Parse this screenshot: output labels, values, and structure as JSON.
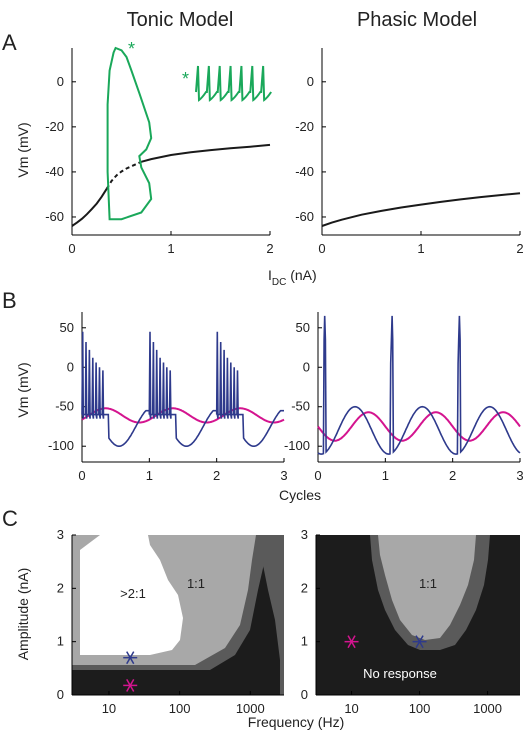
{
  "column_titles": [
    "Tonic Model",
    "Phasic Model"
  ],
  "panel_letters": [
    "A",
    "B",
    "C"
  ],
  "colors": {
    "black_curve": "#1a1a1a",
    "green": "#1aa85a",
    "navy": "#2e3a8c",
    "magenta": "#d4148f",
    "map_dark": "#1c1c1c",
    "map_mid": "#5a5a5a",
    "map_light": "#a8a8a8",
    "map_white": "#ffffff"
  },
  "chart_data": [
    {
      "id": "A-left",
      "type": "line",
      "title": "Tonic Model",
      "xlabel_main": "I",
      "xlabel_sub": "DC",
      "xlabel_unit": " (nA)",
      "ylabel": "Vm (mV)",
      "xlim": [
        0,
        2
      ],
      "ylim": [
        -68,
        15
      ],
      "xticks": [
        0,
        1,
        2
      ],
      "yticks": [
        0,
        -20,
        -40,
        -60
      ],
      "star_label": "*",
      "series": [
        {
          "style": "solid",
          "color": "black",
          "x": [
            0,
            0.05,
            0.1,
            0.15,
            0.2,
            0.25,
            0.3,
            0.35
          ],
          "y": [
            -64,
            -62.5,
            -60.8,
            -58.8,
            -56.5,
            -54,
            -51,
            -47.5
          ]
        },
        {
          "style": "dashed",
          "color": "black",
          "x": [
            0.35,
            0.4,
            0.45,
            0.5,
            0.55,
            0.6,
            0.65,
            0.7
          ],
          "y": [
            -47.5,
            -44,
            -41.5,
            -39.8,
            -38.5,
            -37.5,
            -36.5,
            -35.5
          ]
        },
        {
          "style": "solid",
          "color": "black",
          "x": [
            0.7,
            0.8,
            1.0,
            1.2,
            1.4,
            1.6,
            1.8,
            2.0
          ],
          "y": [
            -35.5,
            -34.3,
            -32.5,
            -31.3,
            -30.3,
            -29.5,
            -28.8,
            -28
          ]
        },
        {
          "style": "loop",
          "color": "green",
          "x": [
            0.42,
            0.44,
            0.5,
            0.55,
            0.6,
            0.68,
            0.78,
            0.8,
            0.75,
            0.68,
            0.7,
            0.78,
            0.8,
            0.7,
            0.5,
            0.38,
            0.36,
            0.36,
            0.38,
            0.42
          ],
          "y": [
            13,
            15,
            14,
            11,
            5,
            -5,
            -18,
            -25,
            -30,
            -33,
            -38,
            -45,
            -52,
            -58,
            -61,
            -61,
            -40,
            -10,
            5,
            13
          ]
        }
      ]
    },
    {
      "id": "A-inset",
      "type": "line",
      "star_label": "*",
      "series": [
        {
          "color": "green",
          "spikes": 7
        }
      ]
    },
    {
      "id": "A-right",
      "type": "line",
      "title": "Phasic Model",
      "xlim": [
        0,
        2
      ],
      "ylim": [
        -68,
        15
      ],
      "xticks": [
        0,
        1,
        2
      ],
      "yticks": [
        0,
        -20,
        -40,
        -60
      ],
      "series": [
        {
          "style": "solid",
          "color": "black",
          "x": [
            0,
            0.1,
            0.2,
            0.4,
            0.6,
            0.8,
            1.0,
            1.2,
            1.4,
            1.6,
            1.8,
            2.0
          ],
          "y": [
            -64,
            -62.5,
            -61.2,
            -59,
            -57.3,
            -55.8,
            -54.5,
            -53.3,
            -52.2,
            -51.2,
            -50.3,
            -49.5
          ]
        }
      ]
    },
    {
      "id": "B-left",
      "type": "line",
      "xlabel": "Cycles",
      "ylabel": "Vm (mV)",
      "xlim": [
        0,
        3
      ],
      "ylim": [
        -120,
        70
      ],
      "xticks": [
        0,
        1,
        2,
        3
      ],
      "yticks": [
        50,
        0,
        -50,
        -100
      ],
      "series": [
        {
          "color": "magenta",
          "kind": "sine",
          "center": -61,
          "amplitude": 9
        },
        {
          "color": "navy",
          "kind": "tonic-burst",
          "trough": -102,
          "peaks": [
            45,
            32,
            22,
            12,
            6,
            0,
            -4
          ]
        }
      ]
    },
    {
      "id": "B-right",
      "type": "line",
      "xlim": [
        0,
        3
      ],
      "ylim": [
        -120,
        70
      ],
      "xticks": [
        0,
        1,
        2,
        3
      ],
      "yticks": [
        50,
        0,
        -50,
        -100
      ],
      "series": [
        {
          "color": "magenta",
          "kind": "sine",
          "center": -75,
          "amplitude": 18
        },
        {
          "color": "navy",
          "kind": "phasic-spike",
          "trough": -110,
          "peak": 65
        }
      ]
    },
    {
      "id": "C-left",
      "type": "heatmap",
      "xlabel": "Frequency (Hz)",
      "ylabel": "Amplitude (nA)",
      "xscale": "log",
      "xlim": [
        3,
        3000
      ],
      "ylim": [
        0,
        3
      ],
      "xticks": [
        10,
        100,
        1000
      ],
      "yticks": [
        0,
        1,
        2,
        3
      ],
      "regions": [
        ">2:1",
        "1:1"
      ],
      "markers": [
        {
          "color": "navy",
          "freq": 20,
          "amp": 0.7
        },
        {
          "color": "magenta",
          "freq": 20,
          "amp": 0.18
        }
      ]
    },
    {
      "id": "C-right",
      "type": "heatmap",
      "xscale": "log",
      "xlim": [
        3,
        3000
      ],
      "ylim": [
        0,
        3
      ],
      "xticks": [
        10,
        100,
        1000
      ],
      "yticks": [
        0,
        1,
        2,
        3
      ],
      "regions": [
        "1:1",
        "No response"
      ],
      "markers": [
        {
          "color": "magenta",
          "freq": 10,
          "amp": 1.0
        },
        {
          "color": "navy",
          "freq": 100,
          "amp": 1.0
        }
      ]
    }
  ]
}
